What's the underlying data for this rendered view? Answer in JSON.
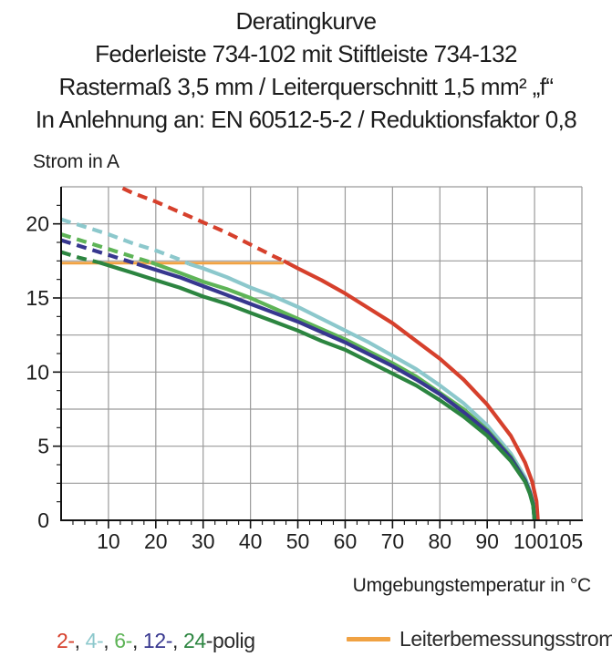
{
  "chart_data": {
    "type": "line",
    "title_lines": [
      "Deratingkurve",
      "Federleiste 734-102 mit Stiftleiste 734-132",
      "Rastermaß 3,5 mm / Leiterquerschnitt 1,5 mm² „f“",
      "In Anlehnung an: EN 60512-5-2 / Reduktionsfaktor 0,8"
    ],
    "xlabel": "Umgebungstemperatur in °C",
    "ylabel": "Strom in A",
    "xlim": [
      0,
      110
    ],
    "ylim": [
      0,
      22.5
    ],
    "x_tick_labels": [
      10,
      20,
      30,
      40,
      50,
      60,
      70,
      80,
      90,
      100,
      105
    ],
    "y_tick_labels": [
      0,
      5,
      10,
      15,
      20
    ],
    "x_grid_step": 10,
    "y_grid_step": 2.5,
    "x_minor_tick_step": 2.5,
    "y_minor_tick_step": 1.25,
    "grid_color": "#9a9a9a",
    "axis_color": "#111111",
    "rated_current": {
      "label": "Leiterbemessungsstrom",
      "value": 17.35,
      "x_start": 0,
      "x_end": 47,
      "color": "#f0a243"
    },
    "series": [
      {
        "name": "2-polig",
        "color": "#d6402c",
        "dash_until": 47,
        "points": [
          [
            13,
            22.4
          ],
          [
            15,
            22.1
          ],
          [
            20,
            21.5
          ],
          [
            25,
            20.8
          ],
          [
            30,
            20.1
          ],
          [
            35,
            19.4
          ],
          [
            40,
            18.6
          ],
          [
            45,
            17.8
          ],
          [
            47,
            17.5
          ],
          [
            50,
            17.0
          ],
          [
            55,
            16.2
          ],
          [
            60,
            15.3
          ],
          [
            65,
            14.3
          ],
          [
            70,
            13.3
          ],
          [
            75,
            12.1
          ],
          [
            80,
            10.9
          ],
          [
            85,
            9.5
          ],
          [
            90,
            7.8
          ],
          [
            95,
            5.7
          ],
          [
            98,
            3.9
          ],
          [
            99.5,
            2.6
          ],
          [
            100.4,
            1.3
          ],
          [
            100.7,
            0
          ]
        ]
      },
      {
        "name": "4-polig",
        "color": "#8cc8cc",
        "dash_until": 27,
        "points": [
          [
            0,
            20.3
          ],
          [
            5,
            19.8
          ],
          [
            10,
            19.3
          ],
          [
            15,
            18.7
          ],
          [
            20,
            18.2
          ],
          [
            25,
            17.6
          ],
          [
            27,
            17.3
          ],
          [
            30,
            17.0
          ],
          [
            35,
            16.4
          ],
          [
            40,
            15.7
          ],
          [
            45,
            15.1
          ],
          [
            50,
            14.4
          ],
          [
            55,
            13.6
          ],
          [
            60,
            12.8
          ],
          [
            65,
            12.0
          ],
          [
            70,
            11.1
          ],
          [
            75,
            10.2
          ],
          [
            80,
            9.1
          ],
          [
            85,
            7.9
          ],
          [
            90,
            6.4
          ],
          [
            95,
            4.5
          ],
          [
            98,
            2.9
          ],
          [
            99,
            2.0
          ],
          [
            99.7,
            1.2
          ],
          [
            100,
            0
          ]
        ]
      },
      {
        "name": "6-polig",
        "color": "#5eb457",
        "dash_until": 19,
        "points": [
          [
            0,
            19.3
          ],
          [
            5,
            18.8
          ],
          [
            10,
            18.3
          ],
          [
            15,
            17.8
          ],
          [
            19,
            17.4
          ],
          [
            25,
            16.7
          ],
          [
            30,
            16.1
          ],
          [
            35,
            15.6
          ],
          [
            40,
            15.0
          ],
          [
            45,
            14.3
          ],
          [
            50,
            13.6
          ],
          [
            55,
            12.9
          ],
          [
            60,
            12.2
          ],
          [
            65,
            11.4
          ],
          [
            70,
            10.6
          ],
          [
            75,
            9.7
          ],
          [
            80,
            8.6
          ],
          [
            85,
            7.5
          ],
          [
            90,
            6.1
          ],
          [
            95,
            4.3
          ],
          [
            98,
            2.7
          ],
          [
            99,
            1.9
          ],
          [
            99.7,
            1.1
          ],
          [
            100,
            0
          ]
        ]
      },
      {
        "name": "12-polig",
        "color": "#37378f",
        "dash_until": 16,
        "points": [
          [
            0,
            18.9
          ],
          [
            5,
            18.4
          ],
          [
            10,
            17.9
          ],
          [
            15,
            17.4
          ],
          [
            16,
            17.3
          ],
          [
            20,
            16.9
          ],
          [
            25,
            16.4
          ],
          [
            30,
            15.8
          ],
          [
            35,
            15.2
          ],
          [
            40,
            14.6
          ],
          [
            45,
            14.0
          ],
          [
            50,
            13.4
          ],
          [
            55,
            12.7
          ],
          [
            60,
            12.0
          ],
          [
            65,
            11.2
          ],
          [
            70,
            10.4
          ],
          [
            75,
            9.5
          ],
          [
            80,
            8.5
          ],
          [
            85,
            7.3
          ],
          [
            90,
            6.0
          ],
          [
            95,
            4.2
          ],
          [
            98,
            2.7
          ],
          [
            99,
            1.9
          ],
          [
            99.7,
            1.1
          ],
          [
            100,
            0
          ]
        ]
      },
      {
        "name": "24-polig",
        "color": "#2c8540",
        "dash_until": 8,
        "points": [
          [
            0,
            18.1
          ],
          [
            4,
            17.7
          ],
          [
            8,
            17.4
          ],
          [
            15,
            16.7
          ],
          [
            20,
            16.2
          ],
          [
            25,
            15.7
          ],
          [
            30,
            15.1
          ],
          [
            35,
            14.6
          ],
          [
            40,
            14.0
          ],
          [
            45,
            13.4
          ],
          [
            50,
            12.8
          ],
          [
            55,
            12.1
          ],
          [
            60,
            11.5
          ],
          [
            65,
            10.7
          ],
          [
            70,
            9.9
          ],
          [
            75,
            9.1
          ],
          [
            80,
            8.1
          ],
          [
            85,
            7.0
          ],
          [
            90,
            5.7
          ],
          [
            95,
            4.0
          ],
          [
            98,
            2.6
          ],
          [
            99,
            1.8
          ],
          [
            99.7,
            1.0
          ],
          [
            100,
            0
          ]
        ]
      }
    ]
  },
  "legend": {
    "poles": [
      {
        "label": "2-",
        "color": "#d6402c"
      },
      {
        "label": "4-",
        "color": "#8cc8cc"
      },
      {
        "label": "6-",
        "color": "#5eb457"
      },
      {
        "label": "12-",
        "color": "#37378f"
      },
      {
        "label": "24",
        "color": "#2c8540"
      }
    ],
    "separator": ", ",
    "suffix": "-polig",
    "text_color": "#2b2b2b"
  }
}
